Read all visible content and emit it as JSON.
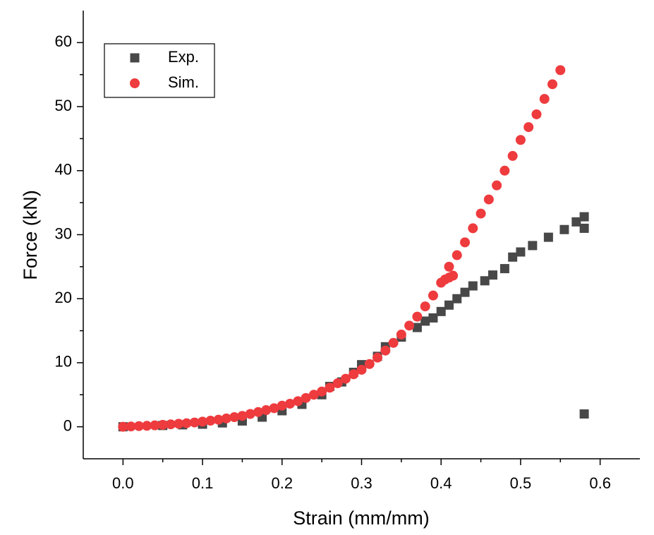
{
  "chart_data": {
    "type": "scatter",
    "xlabel": "Strain (mm/mm)",
    "ylabel": "Force (kN)",
    "xlim": [
      -0.05,
      0.65
    ],
    "ylim": [
      -5,
      65
    ],
    "xticks": [
      {
        "value": 0,
        "label": "0.0"
      },
      0.1,
      0.2,
      0.3,
      0.4,
      0.5,
      0.6
    ],
    "yticks": [
      0,
      10,
      20,
      30,
      40,
      50,
      60
    ],
    "legend": "upper left",
    "series": [
      {
        "name": "Exp.",
        "color": "#484848",
        "marker": "square",
        "x": [
          0,
          0.05,
          0.075,
          0.1,
          0.125,
          0.15,
          0.175,
          0.2,
          0.225,
          0.25,
          0.26,
          0.275,
          0.29,
          0.3,
          0.32,
          0.33,
          0.35,
          0.37,
          0.38,
          0.39,
          0.4,
          0.41,
          0.42,
          0.43,
          0.44,
          0.455,
          0.465,
          0.48,
          0.49,
          0.5,
          0.515,
          0.535,
          0.555,
          0.57,
          0.58,
          0.58,
          0.58
        ],
        "values": [
          0,
          0.2,
          0.3,
          0.4,
          0.6,
          0.9,
          1.5,
          2.5,
          3.5,
          5,
          6.3,
          7,
          8.5,
          9.7,
          11,
          12.5,
          14,
          15.5,
          16.5,
          17,
          18,
          19,
          20,
          21,
          22,
          22.8,
          23.7,
          24.7,
          26.5,
          27.3,
          28.3,
          29.6,
          30.8,
          32,
          32.8,
          31,
          2
        ]
      },
      {
        "name": "Sim.",
        "color": "#ee3b3e",
        "marker": "circle",
        "x": [
          0,
          0.01,
          0.02,
          0.03,
          0.04,
          0.05,
          0.06,
          0.07,
          0.08,
          0.09,
          0.1,
          0.11,
          0.12,
          0.13,
          0.14,
          0.15,
          0.16,
          0.17,
          0.18,
          0.19,
          0.2,
          0.21,
          0.22,
          0.23,
          0.24,
          0.25,
          0.26,
          0.27,
          0.28,
          0.29,
          0.3,
          0.31,
          0.32,
          0.33,
          0.34,
          0.35,
          0.36,
          0.37,
          0.38,
          0.39,
          0.4,
          0.405,
          0.41,
          0.415,
          0.41,
          0.42,
          0.43,
          0.44,
          0.45,
          0.46,
          0.47,
          0.48,
          0.49,
          0.5,
          0.51,
          0.52,
          0.53,
          0.54,
          0.55
        ],
        "values": [
          0,
          0.05,
          0.1,
          0.15,
          0.22,
          0.3,
          0.38,
          0.47,
          0.56,
          0.67,
          0.8,
          0.95,
          1.1,
          1.3,
          1.5,
          1.7,
          2.0,
          2.3,
          2.6,
          2.9,
          3.3,
          3.6,
          4.0,
          4.5,
          5.0,
          5.5,
          6.1,
          6.8,
          7.5,
          8.2,
          8.9,
          9.8,
          10.8,
          11.9,
          13.1,
          14.4,
          15.8,
          17.2,
          18.8,
          20.5,
          22.5,
          23.0,
          23.3,
          23.6,
          25.0,
          26.8,
          28.8,
          31.0,
          33.3,
          35.5,
          37.7,
          40.0,
          42.3,
          44.8,
          46.8,
          48.8,
          51.2,
          53.5,
          55.7
        ]
      }
    ]
  }
}
